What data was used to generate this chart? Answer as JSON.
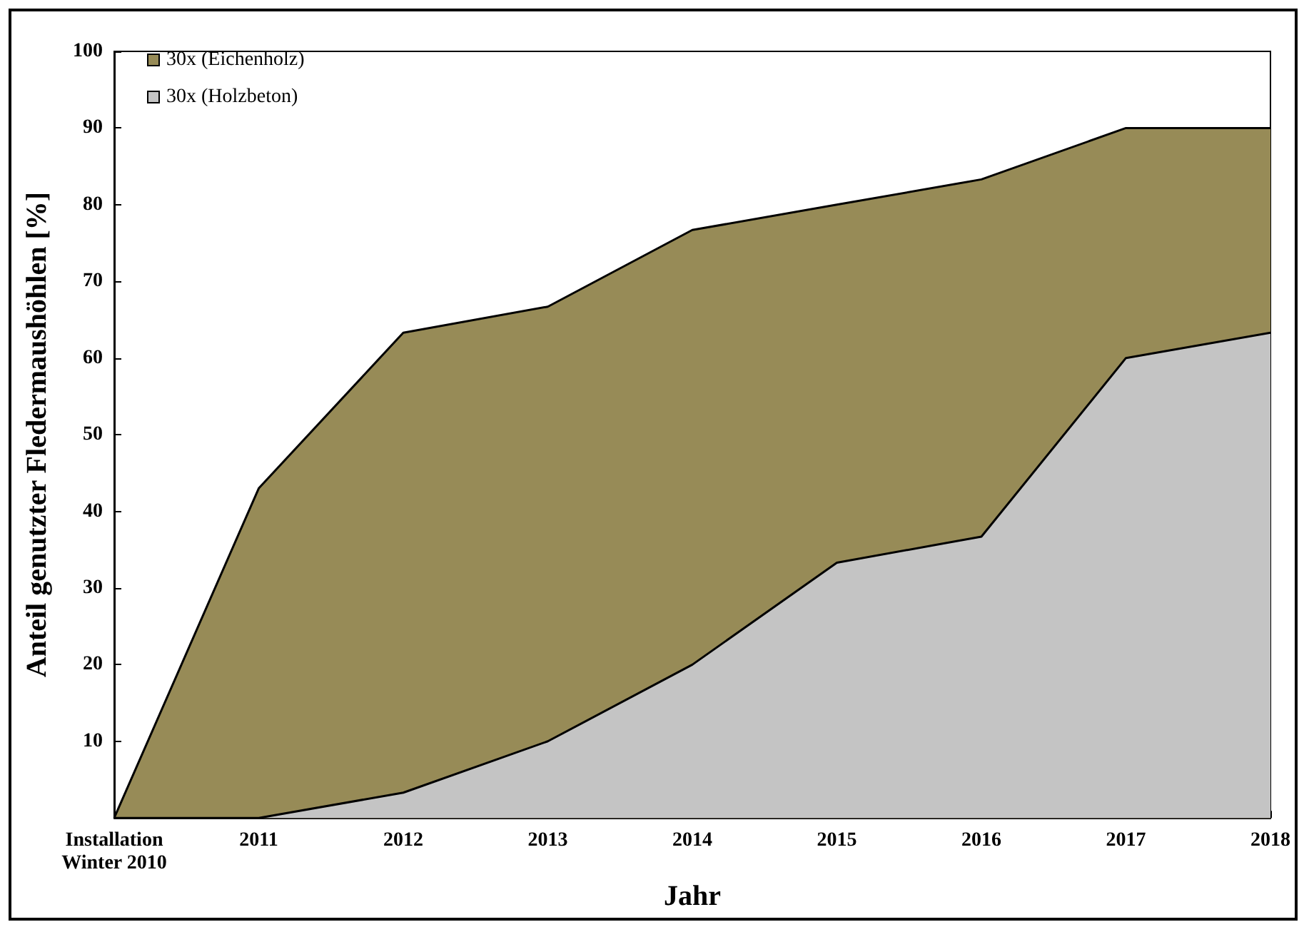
{
  "chart_data": {
    "type": "area",
    "xlabel": "Jahr",
    "ylabel": "Anteil genutzter Fledermaushöhlen [%]",
    "categories": [
      "Installation\nWinter 2010",
      "2011",
      "2012",
      "2013",
      "2014",
      "2015",
      "2016",
      "2017",
      "2018"
    ],
    "series": [
      {
        "name": "30x (Eichenholz)",
        "color": "#978b57",
        "values": [
          0,
          43,
          63.3,
          66.7,
          76.7,
          80,
          83.3,
          90,
          90
        ]
      },
      {
        "name": "30x (Holzbeton)",
        "color": "#c4c4c4",
        "values": [
          0,
          0,
          3.3,
          10,
          20,
          33.3,
          36.7,
          60,
          63.3
        ]
      }
    ],
    "ylim": [
      0,
      100
    ],
    "yticks": [
      {
        "value": 0,
        "label": null
      },
      10,
      20,
      30,
      40,
      50,
      60,
      70,
      80,
      90,
      100
    ],
    "grid": false,
    "legend": "top left",
    "marker": "none",
    "line_style": "solid"
  }
}
